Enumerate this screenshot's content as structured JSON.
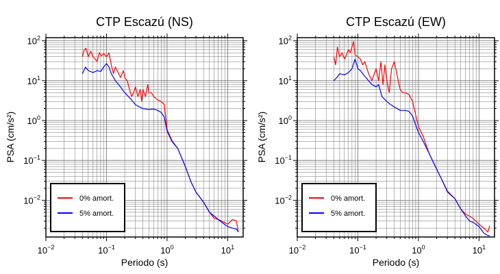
{
  "colors": {
    "frame": "#000000",
    "grid": "#6e6e6e",
    "series_0": "#ff0000",
    "series_5": "#0000ff"
  },
  "chart_data": [
    {
      "type": "line",
      "title": "CTP Escazú (NS)",
      "xlabel": "Periodo (s)",
      "ylabel": "PSA (cm/s²)",
      "x_scale": "log",
      "y_scale": "log",
      "xlim": [
        0.01,
        18
      ],
      "ylim": [
        0.0012,
        120
      ],
      "grid": true,
      "legend_position": "bottom-left",
      "x_ticks": [
        {
          "base": "10",
          "exp": "−2"
        },
        {
          "base": "10",
          "exp": "−1"
        },
        {
          "base": "10",
          "exp": "0"
        },
        {
          "base": "10",
          "exp": "1"
        }
      ],
      "y_ticks": [
        {
          "base": "10",
          "exp": "−2"
        },
        {
          "base": "10",
          "exp": "−1"
        },
        {
          "base": "10",
          "exp": "0"
        },
        {
          "base": "10",
          "exp": "1"
        },
        {
          "base": "10",
          "exp": "2"
        }
      ],
      "series": [
        {
          "name": "0% amort.",
          "color": "#ff0000",
          "x": [
            0.04,
            0.043,
            0.046,
            0.05,
            0.055,
            0.06,
            0.065,
            0.07,
            0.076,
            0.083,
            0.09,
            0.1,
            0.11,
            0.12,
            0.13,
            0.14,
            0.15,
            0.17,
            0.19,
            0.2,
            0.22,
            0.24,
            0.26,
            0.28,
            0.3,
            0.33,
            0.36,
            0.38,
            0.4,
            0.44,
            0.48,
            0.5,
            0.55,
            0.6,
            0.7,
            0.8,
            0.9,
            1.0,
            1.2,
            1.5,
            2.0,
            2.5,
            3.0,
            4.0,
            5.0,
            6.0,
            7.0,
            8.0,
            10,
            12,
            14,
            15
          ],
          "values": [
            40,
            60,
            65,
            40,
            55,
            40,
            35,
            30,
            50,
            42,
            48,
            40,
            50,
            25,
            15,
            22,
            18,
            12,
            18,
            12,
            10,
            6,
            4,
            5,
            7,
            4,
            6,
            3,
            6,
            4,
            8,
            5,
            5,
            4,
            3.3,
            3,
            2.5,
            0.6,
            0.32,
            0.2,
            0.07,
            0.028,
            0.016,
            0.009,
            0.005,
            0.0035,
            0.0033,
            0.003,
            0.0025,
            0.0033,
            0.003,
            0.0016
          ]
        },
        {
          "name": "5% amort.",
          "color": "#0000ff",
          "x": [
            0.04,
            0.045,
            0.05,
            0.06,
            0.07,
            0.08,
            0.09,
            0.1,
            0.11,
            0.12,
            0.14,
            0.17,
            0.2,
            0.25,
            0.3,
            0.35,
            0.4,
            0.5,
            0.6,
            0.7,
            0.8,
            0.9,
            1.0,
            1.2,
            1.5,
            2.0,
            2.5,
            3.0,
            4.0,
            5.0,
            6.0,
            7.0,
            8.0,
            10,
            12,
            14,
            15
          ],
          "values": [
            15,
            22,
            18,
            16,
            18,
            17,
            22,
            27,
            22,
            15,
            10,
            7,
            5,
            3.5,
            2.5,
            2.2,
            2,
            1.9,
            1.95,
            1.8,
            1.6,
            1.2,
            0.55,
            0.3,
            0.2,
            0.07,
            0.028,
            0.016,
            0.009,
            0.005,
            0.004,
            0.0033,
            0.0028,
            0.0022,
            0.002,
            0.0019,
            0.0016
          ]
        }
      ]
    },
    {
      "type": "line",
      "title": "CTP Escazú (EW)",
      "xlabel": "Periodo (s)",
      "ylabel": "PSA (cm/s²)",
      "x_scale": "log",
      "y_scale": "log",
      "xlim": [
        0.01,
        18
      ],
      "ylim": [
        0.0012,
        120
      ],
      "grid": true,
      "legend_position": "bottom-left",
      "x_ticks": [
        {
          "base": "10",
          "exp": "−2"
        },
        {
          "base": "10",
          "exp": "−1"
        },
        {
          "base": "10",
          "exp": "0"
        },
        {
          "base": "10",
          "exp": "1"
        }
      ],
      "y_ticks": [
        {
          "base": "10",
          "exp": "−2"
        },
        {
          "base": "10",
          "exp": "−1"
        },
        {
          "base": "10",
          "exp": "0"
        },
        {
          "base": "10",
          "exp": "1"
        },
        {
          "base": "10",
          "exp": "2"
        }
      ],
      "series": [
        {
          "name": "0% amort.",
          "color": "#ff0000",
          "x": [
            0.04,
            0.043,
            0.046,
            0.05,
            0.055,
            0.06,
            0.065,
            0.07,
            0.075,
            0.08,
            0.085,
            0.09,
            0.1,
            0.11,
            0.12,
            0.13,
            0.15,
            0.17,
            0.2,
            0.22,
            0.24,
            0.26,
            0.28,
            0.3,
            0.33,
            0.36,
            0.4,
            0.44,
            0.48,
            0.5,
            0.55,
            0.6,
            0.7,
            0.8,
            1.0,
            1.2,
            1.5,
            2.0,
            2.5,
            3.0,
            4.0,
            5.0,
            6.0,
            7.0,
            8.0,
            10,
            12,
            14,
            15
          ],
          "values": [
            40,
            25,
            70,
            40,
            50,
            35,
            45,
            60,
            50,
            70,
            95,
            45,
            40,
            35,
            25,
            30,
            15,
            10,
            20,
            10,
            30,
            8,
            25,
            10,
            5,
            20,
            30,
            15,
            8,
            6,
            5,
            5,
            4.5,
            3,
            0.7,
            0.4,
            0.15,
            0.06,
            0.03,
            0.016,
            0.011,
            0.006,
            0.0045,
            0.004,
            0.0035,
            0.0025,
            0.002,
            0.0016,
            0.0023
          ]
        },
        {
          "name": "5% amort.",
          "color": "#0000ff",
          "x": [
            0.04,
            0.045,
            0.05,
            0.06,
            0.07,
            0.08,
            0.09,
            0.1,
            0.11,
            0.12,
            0.15,
            0.17,
            0.2,
            0.22,
            0.25,
            0.3,
            0.35,
            0.4,
            0.5,
            0.6,
            0.7,
            0.8,
            1.0,
            1.2,
            1.5,
            2.0,
            2.5,
            3.0,
            4.0,
            5.0,
            6.0,
            7.0,
            8.0,
            10,
            12,
            14,
            15
          ],
          "values": [
            10,
            12,
            15,
            14,
            16,
            20,
            35,
            20,
            18,
            15,
            10,
            8,
            7,
            8,
            4,
            3,
            2.5,
            2.2,
            1.8,
            1.8,
            1.7,
            1.3,
            0.5,
            0.3,
            0.15,
            0.06,
            0.03,
            0.017,
            0.011,
            0.006,
            0.004,
            0.003,
            0.0028,
            0.0022,
            0.0015,
            0.0013,
            0.0013
          ]
        }
      ]
    }
  ]
}
